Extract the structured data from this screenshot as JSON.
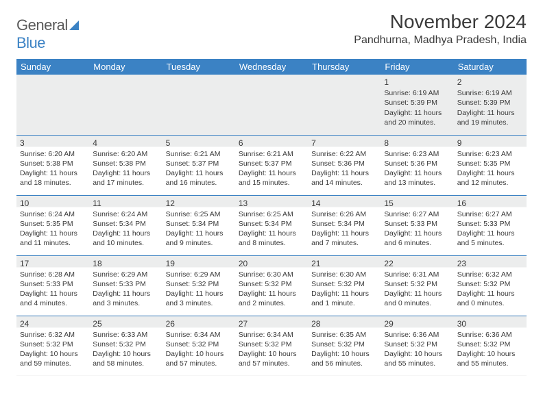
{
  "brand": {
    "word1": "General",
    "word2": "Blue"
  },
  "title": "November 2024",
  "location": "Pandhurna, Madhya Pradesh, India",
  "colors": {
    "header_bg": "#3b82c4",
    "header_fg": "#ffffff",
    "border": "#3b82c4",
    "shade": "#eceded",
    "text": "#3a3a3a"
  },
  "font": {
    "title_size": 28,
    "location_size": 16,
    "day_header_size": 13,
    "cell_size": 10.5
  },
  "weekdays": [
    "Sunday",
    "Monday",
    "Tuesday",
    "Wednesday",
    "Thursday",
    "Friday",
    "Saturday"
  ],
  "weeks": [
    [
      null,
      null,
      null,
      null,
      null,
      {
        "n": "1",
        "sr": "6:19 AM",
        "ss": "5:39 PM",
        "dl": "11 hours and 20 minutes."
      },
      {
        "n": "2",
        "sr": "6:19 AM",
        "ss": "5:39 PM",
        "dl": "11 hours and 19 minutes."
      }
    ],
    [
      {
        "n": "3",
        "sr": "6:20 AM",
        "ss": "5:38 PM",
        "dl": "11 hours and 18 minutes."
      },
      {
        "n": "4",
        "sr": "6:20 AM",
        "ss": "5:38 PM",
        "dl": "11 hours and 17 minutes."
      },
      {
        "n": "5",
        "sr": "6:21 AM",
        "ss": "5:37 PM",
        "dl": "11 hours and 16 minutes."
      },
      {
        "n": "6",
        "sr": "6:21 AM",
        "ss": "5:37 PM",
        "dl": "11 hours and 15 minutes."
      },
      {
        "n": "7",
        "sr": "6:22 AM",
        "ss": "5:36 PM",
        "dl": "11 hours and 14 minutes."
      },
      {
        "n": "8",
        "sr": "6:23 AM",
        "ss": "5:36 PM",
        "dl": "11 hours and 13 minutes."
      },
      {
        "n": "9",
        "sr": "6:23 AM",
        "ss": "5:35 PM",
        "dl": "11 hours and 12 minutes."
      }
    ],
    [
      {
        "n": "10",
        "sr": "6:24 AM",
        "ss": "5:35 PM",
        "dl": "11 hours and 11 minutes."
      },
      {
        "n": "11",
        "sr": "6:24 AM",
        "ss": "5:34 PM",
        "dl": "11 hours and 10 minutes."
      },
      {
        "n": "12",
        "sr": "6:25 AM",
        "ss": "5:34 PM",
        "dl": "11 hours and 9 minutes."
      },
      {
        "n": "13",
        "sr": "6:25 AM",
        "ss": "5:34 PM",
        "dl": "11 hours and 8 minutes."
      },
      {
        "n": "14",
        "sr": "6:26 AM",
        "ss": "5:34 PM",
        "dl": "11 hours and 7 minutes."
      },
      {
        "n": "15",
        "sr": "6:27 AM",
        "ss": "5:33 PM",
        "dl": "11 hours and 6 minutes."
      },
      {
        "n": "16",
        "sr": "6:27 AM",
        "ss": "5:33 PM",
        "dl": "11 hours and 5 minutes."
      }
    ],
    [
      {
        "n": "17",
        "sr": "6:28 AM",
        "ss": "5:33 PM",
        "dl": "11 hours and 4 minutes."
      },
      {
        "n": "18",
        "sr": "6:29 AM",
        "ss": "5:33 PM",
        "dl": "11 hours and 3 minutes."
      },
      {
        "n": "19",
        "sr": "6:29 AM",
        "ss": "5:32 PM",
        "dl": "11 hours and 3 minutes."
      },
      {
        "n": "20",
        "sr": "6:30 AM",
        "ss": "5:32 PM",
        "dl": "11 hours and 2 minutes."
      },
      {
        "n": "21",
        "sr": "6:30 AM",
        "ss": "5:32 PM",
        "dl": "11 hours and 1 minute."
      },
      {
        "n": "22",
        "sr": "6:31 AM",
        "ss": "5:32 PM",
        "dl": "11 hours and 0 minutes."
      },
      {
        "n": "23",
        "sr": "6:32 AM",
        "ss": "5:32 PM",
        "dl": "11 hours and 0 minutes."
      }
    ],
    [
      {
        "n": "24",
        "sr": "6:32 AM",
        "ss": "5:32 PM",
        "dl": "10 hours and 59 minutes."
      },
      {
        "n": "25",
        "sr": "6:33 AM",
        "ss": "5:32 PM",
        "dl": "10 hours and 58 minutes."
      },
      {
        "n": "26",
        "sr": "6:34 AM",
        "ss": "5:32 PM",
        "dl": "10 hours and 57 minutes."
      },
      {
        "n": "27",
        "sr": "6:34 AM",
        "ss": "5:32 PM",
        "dl": "10 hours and 57 minutes."
      },
      {
        "n": "28",
        "sr": "6:35 AM",
        "ss": "5:32 PM",
        "dl": "10 hours and 56 minutes."
      },
      {
        "n": "29",
        "sr": "6:36 AM",
        "ss": "5:32 PM",
        "dl": "10 hours and 55 minutes."
      },
      {
        "n": "30",
        "sr": "6:36 AM",
        "ss": "5:32 PM",
        "dl": "10 hours and 55 minutes."
      }
    ]
  ],
  "labels": {
    "sunrise": "Sunrise:",
    "sunset": "Sunset:",
    "daylight": "Daylight:"
  }
}
